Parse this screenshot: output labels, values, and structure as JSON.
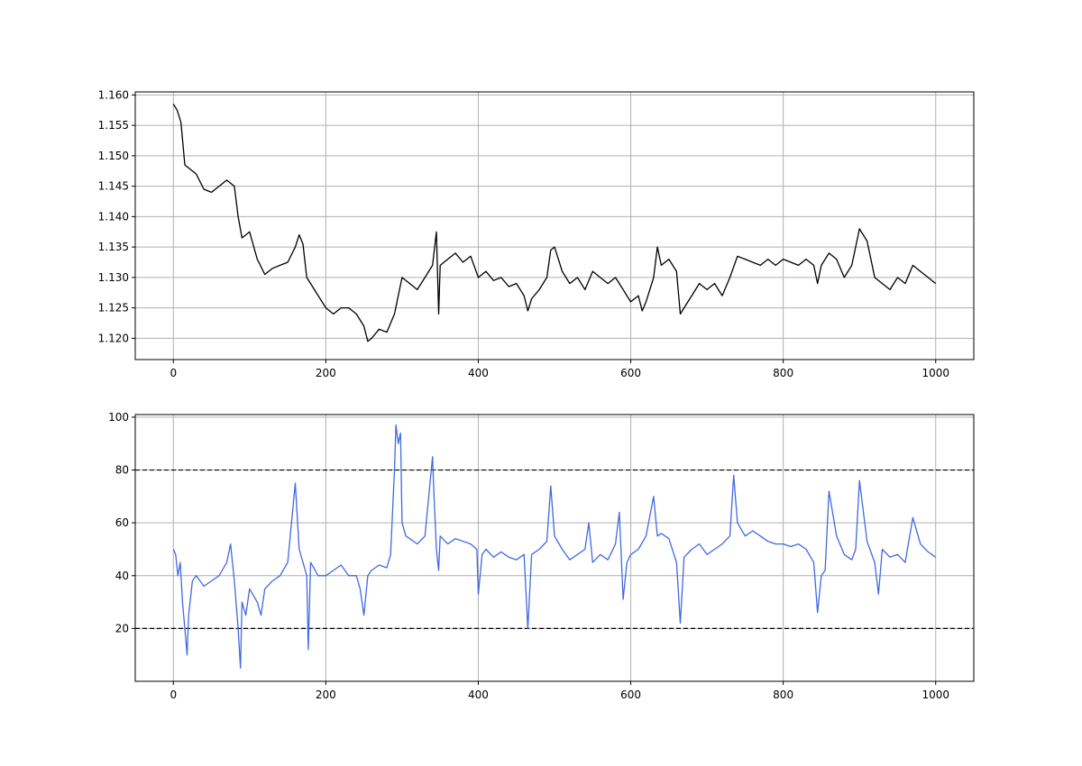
{
  "chart_data": [
    {
      "type": "line",
      "title": "",
      "xlabel": "",
      "ylabel": "",
      "xlim": [
        -50,
        1050
      ],
      "ylim": [
        1.1165,
        1.1605
      ],
      "grid": true,
      "x_ticks": [
        0,
        200,
        400,
        600,
        800,
        1000
      ],
      "x_tick_labels": [
        "0",
        "200",
        "400",
        "600",
        "800",
        "1000"
      ],
      "y_ticks": [
        1.12,
        1.125,
        1.13,
        1.135,
        1.14,
        1.145,
        1.15,
        1.155,
        1.16
      ],
      "y_tick_labels": [
        "1.120",
        "1.125",
        "1.130",
        "1.135",
        "1.140",
        "1.145",
        "1.150",
        "1.155",
        "1.160"
      ],
      "series": [
        {
          "color": "#000000",
          "x": [
            0,
            5,
            10,
            15,
            20,
            30,
            40,
            50,
            60,
            70,
            80,
            85,
            90,
            100,
            110,
            120,
            125,
            130,
            140,
            150,
            160,
            165,
            170,
            175,
            180,
            190,
            200,
            210,
            220,
            230,
            240,
            250,
            255,
            260,
            270,
            280,
            290,
            300,
            310,
            320,
            330,
            340,
            345,
            348,
            350,
            360,
            370,
            380,
            390,
            400,
            410,
            420,
            430,
            440,
            450,
            460,
            465,
            470,
            480,
            490,
            495,
            500,
            510,
            520,
            530,
            540,
            550,
            560,
            570,
            580,
            590,
            600,
            610,
            615,
            620,
            630,
            635,
            640,
            650,
            660,
            665,
            670,
            680,
            690,
            700,
            710,
            720,
            730,
            740,
            750,
            760,
            770,
            780,
            790,
            800,
            810,
            820,
            830,
            840,
            845,
            850,
            860,
            870,
            880,
            890,
            900,
            910,
            915,
            920,
            930,
            940,
            950,
            960,
            970,
            980,
            990,
            1000
          ],
          "y": [
            1.1585,
            1.1575,
            1.1555,
            1.1485,
            1.148,
            1.147,
            1.1445,
            1.144,
            1.145,
            1.146,
            1.145,
            1.14,
            1.1365,
            1.1375,
            1.133,
            1.1305,
            1.131,
            1.1315,
            1.132,
            1.1325,
            1.135,
            1.137,
            1.1355,
            1.13,
            1.129,
            1.127,
            1.125,
            1.124,
            1.125,
            1.125,
            1.124,
            1.122,
            1.1195,
            1.12,
            1.1215,
            1.121,
            1.124,
            1.13,
            1.129,
            1.128,
            1.13,
            1.132,
            1.1375,
            1.124,
            1.132,
            1.133,
            1.134,
            1.1325,
            1.1335,
            1.13,
            1.131,
            1.1295,
            1.13,
            1.1285,
            1.129,
            1.127,
            1.1245,
            1.1265,
            1.128,
            1.13,
            1.1345,
            1.135,
            1.131,
            1.129,
            1.13,
            1.128,
            1.131,
            1.13,
            1.129,
            1.13,
            1.128,
            1.126,
            1.127,
            1.1245,
            1.126,
            1.13,
            1.135,
            1.132,
            1.133,
            1.131,
            1.124,
            1.125,
            1.127,
            1.129,
            1.128,
            1.129,
            1.127,
            1.13,
            1.1335,
            1.133,
            1.1325,
            1.132,
            1.133,
            1.132,
            1.133,
            1.1325,
            1.132,
            1.133,
            1.132,
            1.129,
            1.132,
            1.134,
            1.133,
            1.13,
            1.132,
            1.138,
            1.136,
            1.133,
            1.13,
            1.129,
            1.128,
            1.13,
            1.129,
            1.132,
            1.131,
            1.13,
            1.129
          ]
        }
      ]
    },
    {
      "type": "line",
      "title": "",
      "xlabel": "",
      "ylabel": "",
      "xlim": [
        -50,
        1050
      ],
      "ylim": [
        0,
        101
      ],
      "grid": true,
      "x_ticks": [
        0,
        200,
        400,
        600,
        800,
        1000
      ],
      "x_tick_labels": [
        "0",
        "200",
        "400",
        "600",
        "800",
        "1000"
      ],
      "y_ticks": [
        20,
        40,
        60,
        80,
        100
      ],
      "y_tick_labels": [
        "20",
        "40",
        "60",
        "80",
        "100"
      ],
      "reference_lines": [
        80,
        20
      ],
      "series": [
        {
          "color": "#4169e1",
          "x": [
            0,
            3,
            6,
            9,
            12,
            15,
            18,
            20,
            25,
            30,
            40,
            50,
            60,
            70,
            75,
            80,
            85,
            88,
            90,
            95,
            100,
            110,
            115,
            120,
            130,
            140,
            150,
            155,
            160,
            165,
            170,
            175,
            177,
            180,
            190,
            200,
            210,
            220,
            230,
            240,
            245,
            250,
            255,
            260,
            270,
            280,
            285,
            290,
            292,
            295,
            298,
            300,
            305,
            310,
            320,
            330,
            340,
            342,
            345,
            348,
            350,
            360,
            370,
            380,
            390,
            398,
            400,
            405,
            410,
            420,
            430,
            440,
            450,
            460,
            465,
            470,
            480,
            490,
            495,
            500,
            510,
            520,
            530,
            540,
            545,
            550,
            560,
            570,
            580,
            585,
            590,
            595,
            600,
            610,
            620,
            630,
            635,
            640,
            650,
            660,
            665,
            670,
            680,
            690,
            700,
            710,
            720,
            730,
            735,
            740,
            750,
            760,
            770,
            780,
            790,
            800,
            810,
            820,
            830,
            840,
            845,
            850,
            855,
            860,
            870,
            880,
            890,
            895,
            900,
            910,
            920,
            925,
            930,
            940,
            950,
            960,
            970,
            980,
            990,
            1000
          ],
          "y": [
            50,
            48,
            40,
            45,
            30,
            20,
            10,
            25,
            38,
            40,
            36,
            38,
            40,
            45,
            52,
            38,
            20,
            5,
            30,
            25,
            35,
            30,
            25,
            35,
            38,
            40,
            45,
            60,
            75,
            50,
            45,
            40,
            12,
            45,
            40,
            40,
            42,
            44,
            40,
            40,
            35,
            25,
            40,
            42,
            44,
            43,
            48,
            80,
            97,
            90,
            94,
            60,
            55,
            54,
            52,
            55,
            85,
            70,
            50,
            42,
            55,
            52,
            54,
            53,
            52,
            50,
            33,
            48,
            50,
            47,
            49,
            47,
            46,
            48,
            20,
            48,
            50,
            53,
            74,
            55,
            50,
            46,
            48,
            50,
            60,
            45,
            48,
            46,
            52,
            64,
            31,
            45,
            48,
            50,
            55,
            70,
            55,
            56,
            54,
            45,
            22,
            47,
            50,
            52,
            48,
            50,
            52,
            55,
            78,
            60,
            55,
            57,
            55,
            53,
            52,
            52,
            51,
            52,
            50,
            45,
            26,
            40,
            42,
            72,
            55,
            48,
            46,
            50,
            76,
            53,
            45,
            33,
            50,
            47,
            48,
            45,
            62,
            52,
            49,
            47
          ]
        }
      ]
    }
  ]
}
